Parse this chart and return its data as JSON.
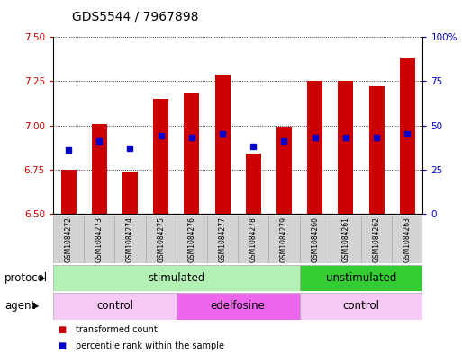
{
  "title": "GDS5544 / 7967898",
  "samples": [
    "GSM1084272",
    "GSM1084273",
    "GSM1084274",
    "GSM1084275",
    "GSM1084276",
    "GSM1084277",
    "GSM1084278",
    "GSM1084279",
    "GSM1084260",
    "GSM1084261",
    "GSM1084262",
    "GSM1084263"
  ],
  "bar_bottom": 6.5,
  "bar_tops": [
    6.75,
    7.01,
    6.74,
    7.15,
    7.18,
    7.29,
    6.84,
    6.99,
    7.25,
    7.25,
    7.22,
    7.38
  ],
  "blue_dot_values": [
    6.86,
    6.91,
    6.87,
    6.94,
    6.93,
    6.95,
    6.88,
    6.91,
    6.93,
    6.93,
    6.93,
    6.95
  ],
  "ylim_left": [
    6.5,
    7.5
  ],
  "ylim_right": [
    0,
    100
  ],
  "yticks_left": [
    6.5,
    6.75,
    7.0,
    7.25,
    7.5
  ],
  "yticks_right": [
    0,
    25,
    50,
    75,
    100
  ],
  "ytick_labels_right": [
    "0",
    "25",
    "50",
    "75",
    "100%"
  ],
  "bar_color": "#cc0000",
  "dot_color": "#0000cc",
  "protocol_labels": [
    {
      "text": "stimulated",
      "start": 0,
      "end": 8,
      "color": "#b3f0b3"
    },
    {
      "text": "unstimulated",
      "start": 8,
      "end": 12,
      "color": "#33cc33"
    }
  ],
  "agent_labels": [
    {
      "text": "control",
      "start": 0,
      "end": 4,
      "color": "#f5c8f5"
    },
    {
      "text": "edelfosine",
      "start": 4,
      "end": 8,
      "color": "#ee66ee"
    },
    {
      "text": "control",
      "start": 8,
      "end": 12,
      "color": "#f5c8f5"
    }
  ],
  "protocol_row_label": "protocol",
  "agent_row_label": "agent",
  "legend_items": [
    {
      "label": "transformed count",
      "color": "#cc0000"
    },
    {
      "label": "percentile rank within the sample",
      "color": "#0000cc"
    }
  ],
  "bg_color": "#ffffff",
  "tick_label_color_left": "#cc0000",
  "tick_label_color_right": "#0000cc",
  "title_fontsize": 10,
  "axis_fontsize": 7.5,
  "label_fontsize": 8.5,
  "sample_fontsize": 5.5
}
